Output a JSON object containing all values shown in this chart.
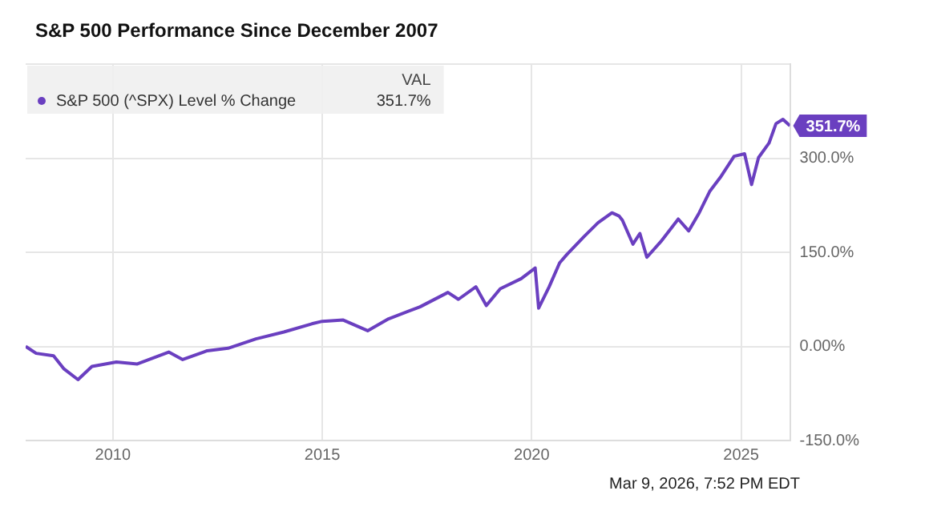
{
  "chart_data": {
    "type": "line",
    "title": "S&P 500 Performance Since December 2007",
    "x": [
      "2007-12",
      "2008-03",
      "2008-08",
      "2008-11",
      "2009-03",
      "2009-07",
      "2010-02",
      "2010-08",
      "2011-05",
      "2011-09",
      "2012-04",
      "2012-10",
      "2013-06",
      "2014-02",
      "2014-10",
      "2015-01",
      "2015-07",
      "2016-02",
      "2016-08",
      "2017-05",
      "2018-01",
      "2018-04",
      "2018-09",
      "2018-12",
      "2019-04",
      "2019-10",
      "2020-02",
      "2020-03",
      "2020-06",
      "2020-09",
      "2020-11",
      "2021-04",
      "2021-08",
      "2021-12",
      "2022-02",
      "2022-03",
      "2022-06",
      "2022-08",
      "2022-10",
      "2023-02",
      "2023-07",
      "2023-10",
      "2024-01",
      "2024-04",
      "2024-07",
      "2024-11",
      "2025-02",
      "2025-04",
      "2025-06",
      "2025-09",
      "2025-11",
      "2026-01",
      "2026-03"
    ],
    "series": [
      {
        "name": "S&P 500 (^SPX) Level % Change",
        "color": "#6a3fc0",
        "values": [
          0,
          -11,
          -15,
          -36,
          -53,
          -32,
          -25,
          -28,
          -9,
          -21,
          -7,
          -3,
          12,
          23,
          36,
          40,
          42,
          25,
          44,
          63,
          86,
          75,
          95,
          65,
          92,
          108,
          125,
          61,
          95,
          133,
          146,
          175,
          197,
          213,
          208,
          201,
          163,
          180,
          142,
          167,
          203,
          184,
          213,
          247,
          269,
          303,
          307,
          258,
          301,
          324,
          355,
          362,
          351.7
        ]
      }
    ],
    "xlim": [
      "2007-12",
      "2026-03"
    ],
    "xticks": [
      {
        "value": "2010-01",
        "label": "2010"
      },
      {
        "value": "2015-01",
        "label": "2015"
      },
      {
        "value": "2020-01",
        "label": "2020"
      },
      {
        "value": "2025-01",
        "label": "2025"
      }
    ],
    "ylim": [
      -150,
      450
    ],
    "yticks": [
      {
        "value": -150,
        "label": "-150.0%"
      },
      {
        "value": 0,
        "label": "0.00%"
      },
      {
        "value": 150,
        "label": "150.0%"
      },
      {
        "value": 300,
        "label": "300.0%"
      },
      {
        "value": 450,
        "label": null
      }
    ],
    "grid": true,
    "legend": "top left",
    "legend_title": "VAL",
    "marker": "none",
    "line_style": "solid",
    "annotations": [
      "351.7%",
      {
        "text": "351.7%",
        "x": "2026-03",
        "y": 351.7
      },
      "Mar 9, 2026, 7:52 PM EDT"
    ]
  }
}
